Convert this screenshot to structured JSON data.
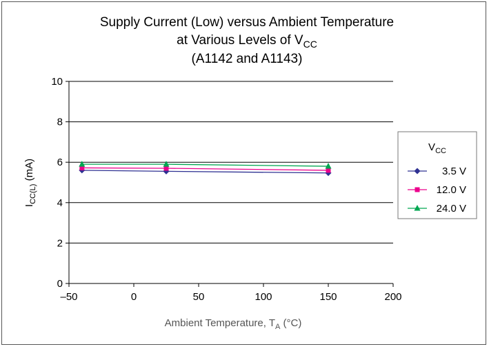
{
  "chart_data": {
    "type": "line",
    "title": {
      "line1": "Supply Current (Low) versus Ambient Temperature",
      "line2_main": "at Various Levels of V",
      "line2_sub": "CC",
      "line3": "(A1142 and A1143)"
    },
    "xlabel": {
      "main": "Ambient Temperature, T",
      "sub": "A",
      "unit": " (°C)"
    },
    "ylabel": {
      "main": "I",
      "sub": "CC(L)",
      "unit": " (mA)"
    },
    "xlim": [
      -50,
      200
    ],
    "ylim": [
      0,
      10
    ],
    "x_ticks": [
      -50,
      0,
      50,
      100,
      150,
      200
    ],
    "x_tick_labels": [
      "–50",
      "0",
      "50",
      "100",
      "150",
      "200"
    ],
    "y_ticks": [
      0,
      2,
      4,
      6,
      8,
      10
    ],
    "y_tick_labels": [
      "0",
      "2",
      "4",
      "6",
      "8",
      "10"
    ],
    "grid": "horizontal",
    "legend": {
      "title_main": "V",
      "title_sub": "CC",
      "placement": "right"
    },
    "x": [
      -40,
      25,
      150
    ],
    "series": [
      {
        "name": "3.5 V",
        "values": [
          5.6,
          5.55,
          5.47
        ],
        "color": "#2E3192",
        "marker": "diamond"
      },
      {
        "name": "12.0 V",
        "values": [
          5.72,
          5.7,
          5.6
        ],
        "color": "#EC008C",
        "marker": "square"
      },
      {
        "name": "24.0 V",
        "values": [
          5.9,
          5.9,
          5.8
        ],
        "color": "#00A651",
        "marker": "triangle"
      }
    ]
  }
}
